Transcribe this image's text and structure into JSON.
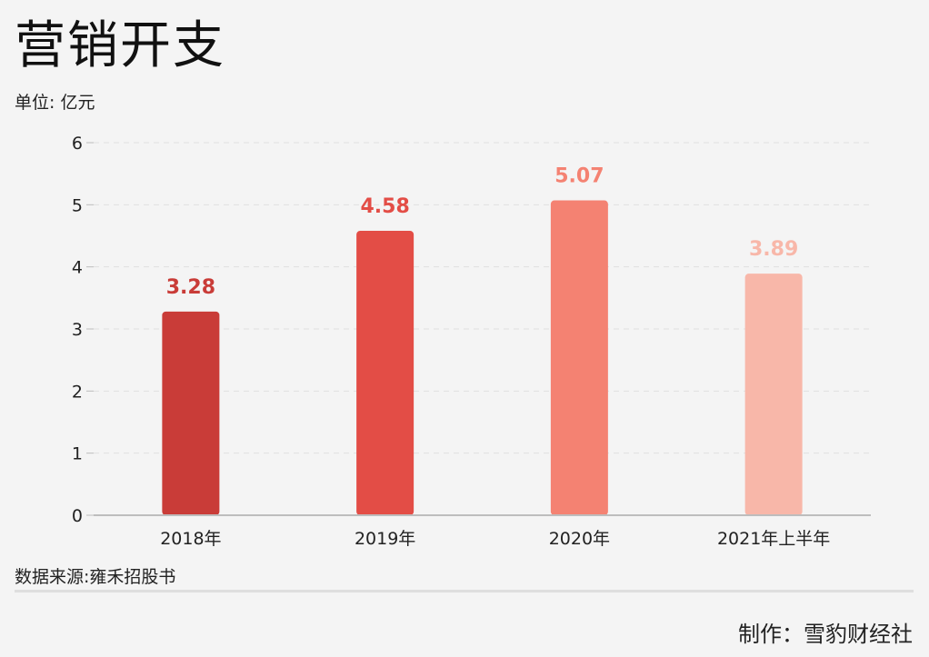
{
  "header": {
    "title": "营销开支",
    "unit": "单位: 亿元"
  },
  "footer": {
    "source": "数据来源:雍禾招股书",
    "credit": "制作：雪豹财经社"
  },
  "chart_data": {
    "type": "bar",
    "title": "营销开支",
    "subtitle": "单位: 亿元",
    "categories": [
      "2018年",
      "2019年",
      "2020年",
      "2021年上半年"
    ],
    "values": [
      3.28,
      4.58,
      5.07,
      3.89
    ],
    "value_labels": [
      "3.28",
      "4.58",
      "5.07",
      "3.89"
    ],
    "bar_colors": [
      "#c93c38",
      "#e34d46",
      "#f48272",
      "#f8b7a9"
    ],
    "ylim": [
      0,
      6
    ],
    "yticks": [
      "0",
      "1",
      "2",
      "3",
      "4",
      "5",
      "6"
    ],
    "xlabel": "",
    "ylabel": "",
    "grid": true,
    "legend": "none"
  }
}
